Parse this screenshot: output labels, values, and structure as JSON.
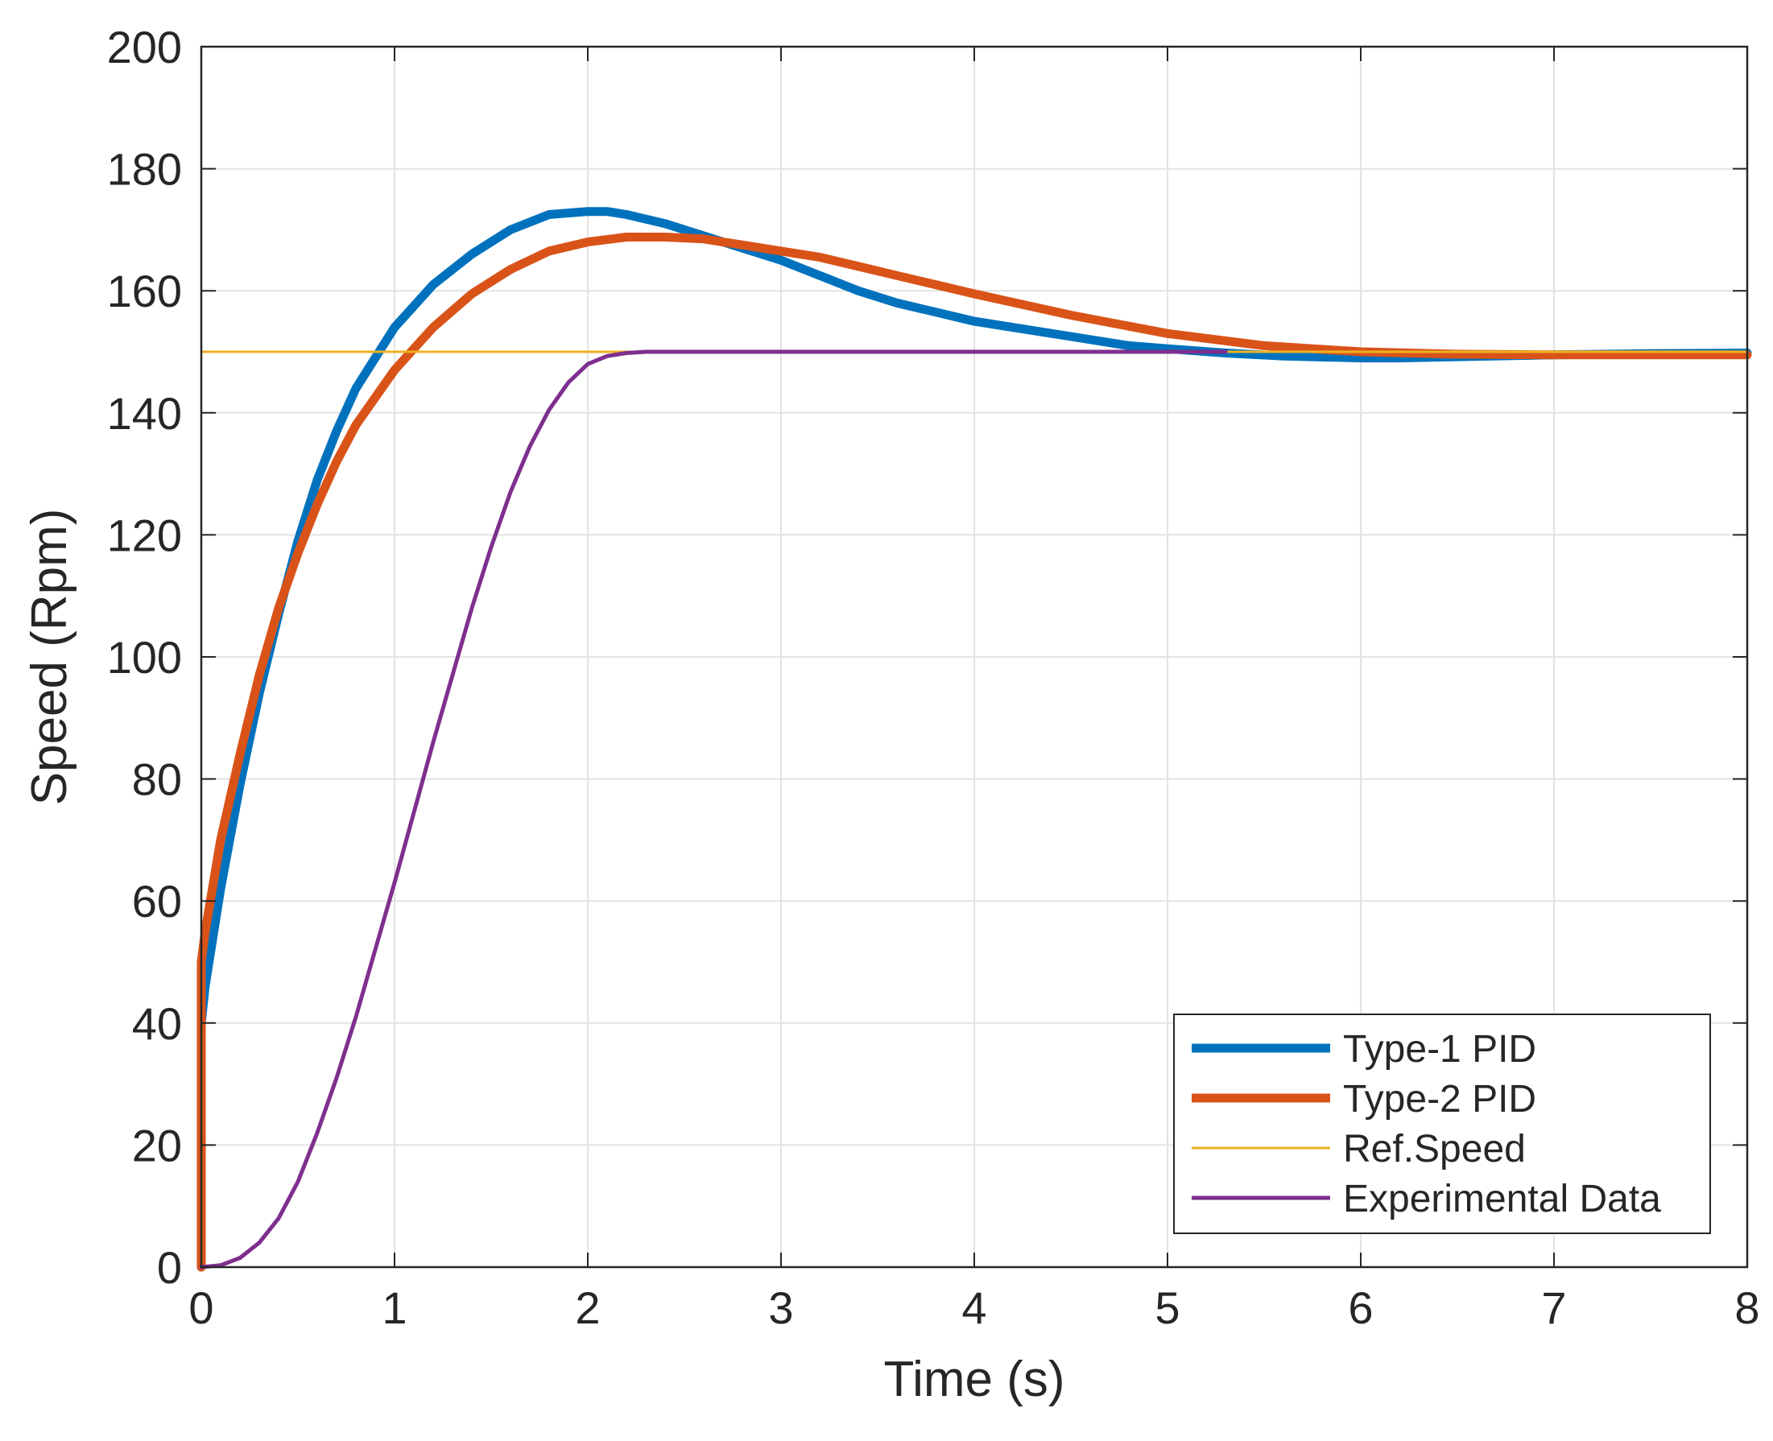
{
  "chart_data": {
    "type": "line",
    "title": "",
    "xlabel": "Time (s)",
    "ylabel": "Speed (Rpm)",
    "xlim": [
      0,
      8
    ],
    "ylim": [
      0,
      200
    ],
    "xticks": [
      "0",
      "1",
      "2",
      "3",
      "4",
      "5",
      "6",
      "7",
      "8"
    ],
    "yticks": [
      "0",
      "20",
      "40",
      "60",
      "80",
      "100",
      "120",
      "140",
      "160",
      "180",
      "200"
    ],
    "grid": true,
    "legend_position": "bottom-right",
    "series": [
      {
        "name": "Type-1 PID",
        "color": "#0072BD",
        "style": "thick",
        "x": [
          0,
          0.0001,
          0.02,
          0.1,
          0.2,
          0.3,
          0.4,
          0.5,
          0.6,
          0.7,
          0.8,
          0.9,
          1.0,
          1.2,
          1.4,
          1.6,
          1.8,
          2.0,
          2.1,
          2.2,
          2.4,
          2.6,
          2.8,
          3.0,
          3.2,
          3.4,
          3.6,
          3.8,
          4.0,
          4.2,
          4.5,
          4.8,
          5.0,
          5.3,
          5.6,
          6.0,
          6.2,
          6.5,
          7.0,
          7.5,
          8.0
        ],
        "y": [
          0,
          40,
          46,
          62,
          79,
          94,
          107,
          119,
          129,
          137,
          144,
          149,
          154,
          161,
          166,
          170,
          172.5,
          173,
          173,
          172.5,
          171,
          169,
          167,
          165,
          162.5,
          160,
          158,
          156.5,
          155,
          154,
          152.5,
          151,
          150.5,
          149.8,
          149.3,
          149,
          149,
          149.2,
          149.5,
          149.7,
          149.8
        ]
      },
      {
        "name": "Type-2 PID",
        "color": "#D95319",
        "style": "thick",
        "x": [
          0,
          0.0001,
          0.02,
          0.1,
          0.2,
          0.3,
          0.4,
          0.5,
          0.6,
          0.7,
          0.8,
          0.9,
          1.0,
          1.2,
          1.4,
          1.6,
          1.8,
          2.0,
          2.2,
          2.4,
          2.6,
          2.8,
          3.0,
          3.2,
          3.4,
          3.6,
          3.8,
          4.0,
          4.5,
          5.0,
          5.5,
          6.0,
          6.5,
          7.0,
          7.5,
          8.0
        ],
        "y": [
          0,
          50,
          55,
          70,
          84,
          97,
          108,
          117,
          125,
          132,
          138,
          142.5,
          147,
          154,
          159.5,
          163.5,
          166.5,
          168,
          168.8,
          168.8,
          168.5,
          167.5,
          166.5,
          165.5,
          164,
          162.5,
          161,
          159.5,
          156,
          153,
          151,
          150,
          149.6,
          149.5,
          149.5,
          149.5
        ]
      },
      {
        "name": "Ref.Speed",
        "color": "#EDB120",
        "style": "thin",
        "x": [
          0,
          8
        ],
        "y": [
          150,
          150
        ]
      },
      {
        "name": "Experimental Data",
        "color": "#7E2F8E",
        "style": "medium",
        "x": [
          0,
          0.1,
          0.2,
          0.3,
          0.4,
          0.5,
          0.6,
          0.7,
          0.8,
          0.9,
          1.0,
          1.1,
          1.2,
          1.3,
          1.4,
          1.5,
          1.6,
          1.7,
          1.8,
          1.9,
          2.0,
          2.1,
          2.2,
          2.3,
          2.4,
          2.5,
          2.6,
          2.7,
          2.8,
          3.0,
          4.0,
          5.0,
          5.3
        ],
        "y": [
          0,
          0.3,
          1.5,
          4,
          8,
          14,
          22,
          31,
          41,
          52,
          63,
          74.5,
          86,
          97,
          108,
          118,
          127,
          134.5,
          140.5,
          145,
          148,
          149.3,
          149.8,
          150,
          150,
          150,
          150,
          150,
          150,
          150,
          150,
          150,
          150
        ]
      }
    ]
  }
}
